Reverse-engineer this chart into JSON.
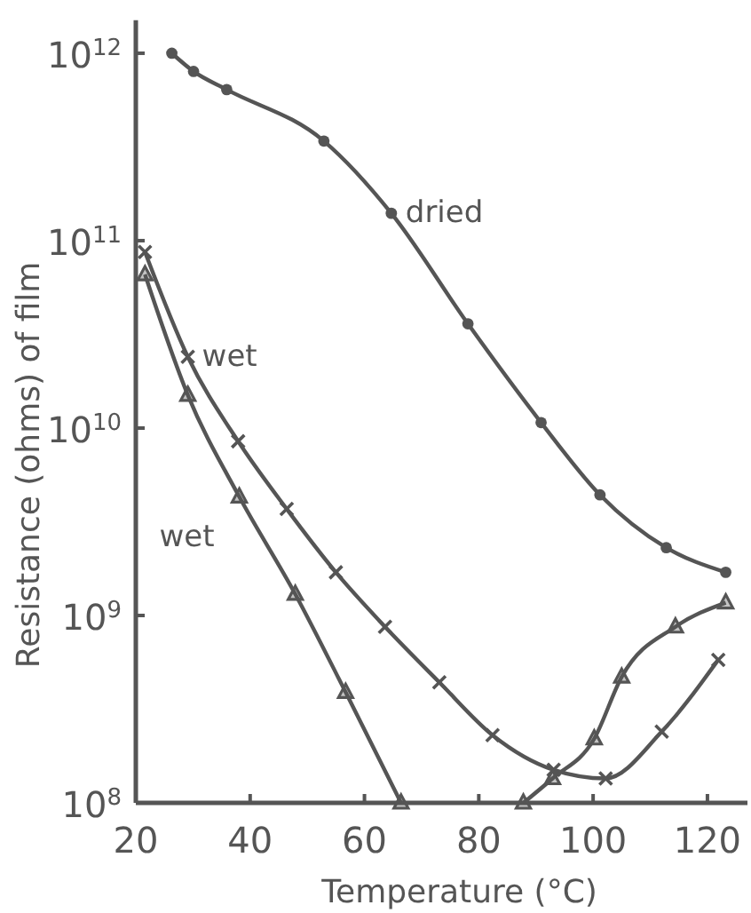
{
  "chart_data": {
    "type": "line",
    "xlabel": "Temperature (°C)",
    "ylabel": "Resistance (ohms) of film",
    "log": "y",
    "xlim": [
      20,
      127
    ],
    "xticks": [
      20,
      40,
      60,
      80,
      100,
      120
    ],
    "ylim": [
      100000000.0,
      1500000000000.0
    ],
    "yticks": [
      {
        "value": 100000000.0,
        "label": "10$^{8}$"
      },
      {
        "value": 1000000000.0,
        "label": "10$^{9}$"
      },
      {
        "value": 10000000000.0,
        "label": "10$^{10}$"
      },
      {
        "value": 100000000000.0,
        "label": "10$^{11}$"
      },
      {
        "value": 1000000000000.0,
        "label": "10$^{12}$"
      }
    ],
    "grid": false,
    "line_style": "solid",
    "series": [
      {
        "name": "dried",
        "color": "#555555",
        "marker": "circle",
        "x": [
          26.3,
          30.1,
          35.9,
          52.9,
          64.7,
          78.1,
          90.9,
          101.2,
          112.8,
          123.2
        ],
        "values": [
          1000000000000.0,
          800000000000.0,
          640000000000.0,
          340000000000.0,
          140000000000.0,
          36000000000.0,
          10700000000.0,
          4400000000.0,
          2300000000.0,
          1700000000.0
        ]
      },
      {
        "name": "wet",
        "color": "#555555",
        "marker": "cross",
        "x": [
          21.6,
          29.1,
          37.9,
          46.4,
          55.0,
          63.6,
          73.1,
          82.4,
          93.1,
          102.2,
          112.0,
          121.9
        ],
        "values": [
          87000000000.0,
          24000000000.0,
          8500000000.0,
          3700000000.0,
          1700000000.0,
          870000000.0,
          440000000.0,
          230000000.0,
          150000000.0,
          135000000.0,
          240000000.0,
          580000000.0
        ]
      },
      {
        "name": "wet",
        "color": "#555555",
        "marker": "triangle",
        "x": [
          21.6,
          29.1,
          38.1,
          47.9,
          56.7,
          66.4
        ],
        "values": [
          66000000000.0,
          15000000000.0,
          4300000000.0,
          1300000000.0,
          390000000.0,
          100000000.0
        ]
      },
      {
        "color": "#555555",
        "marker": "triangle",
        "x": [
          87.8,
          92.9,
          100.2,
          105.0,
          114.4,
          123.2
        ],
        "values": [
          100000000.0,
          135000000.0,
          220000000.0,
          470000000.0,
          870000000.0,
          1170000000.0
        ]
      }
    ]
  }
}
